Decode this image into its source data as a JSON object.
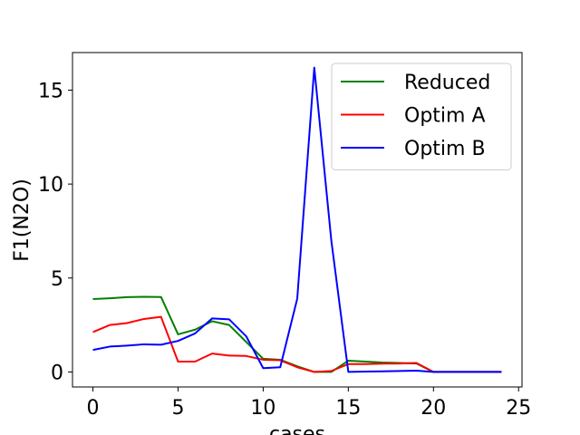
{
  "chart_data": {
    "type": "line",
    "xlabel": "cases",
    "ylabel": "F1(N2O)",
    "xlim": [
      -1.2,
      25.2
    ],
    "ylim": [
      -0.8,
      17.0
    ],
    "xticks": [
      0,
      5,
      10,
      15,
      20,
      25
    ],
    "yticks": [
      0,
      5,
      10,
      15
    ],
    "x": [
      0,
      1,
      2,
      3,
      4,
      5,
      6,
      7,
      8,
      9,
      10,
      11,
      12,
      13,
      14,
      15,
      16,
      17,
      18,
      19,
      20,
      21,
      22,
      23,
      24
    ],
    "grid": false,
    "legend_position": "upper-right",
    "series": [
      {
        "name": "Reduced",
        "color": "#008000",
        "values": [
          3.88,
          3.92,
          3.98,
          4.0,
          3.99,
          2.0,
          2.25,
          2.7,
          2.5,
          1.6,
          0.7,
          0.65,
          0.3,
          0.0,
          0.0,
          0.6,
          0.55,
          0.5,
          0.48,
          0.45,
          0.0,
          0.0,
          0.0,
          0.0,
          0.0
        ]
      },
      {
        "name": "Optim A",
        "color": "#ff0000",
        "values": [
          2.12,
          2.5,
          2.6,
          2.82,
          2.93,
          0.55,
          0.55,
          0.98,
          0.87,
          0.85,
          0.65,
          0.62,
          0.25,
          0.0,
          0.05,
          0.42,
          0.42,
          0.44,
          0.45,
          0.48,
          0.0,
          0.0,
          0.0,
          0.0,
          0.0
        ]
      },
      {
        "name": "Optim B",
        "color": "#0000ff",
        "values": [
          1.17,
          1.35,
          1.4,
          1.47,
          1.45,
          1.65,
          2.05,
          2.85,
          2.8,
          1.9,
          0.2,
          0.25,
          3.9,
          16.2,
          7.0,
          0.0,
          0.02,
          0.03,
          0.05,
          0.07,
          0.0,
          0.0,
          0.0,
          0.0,
          0.0
        ]
      }
    ]
  }
}
